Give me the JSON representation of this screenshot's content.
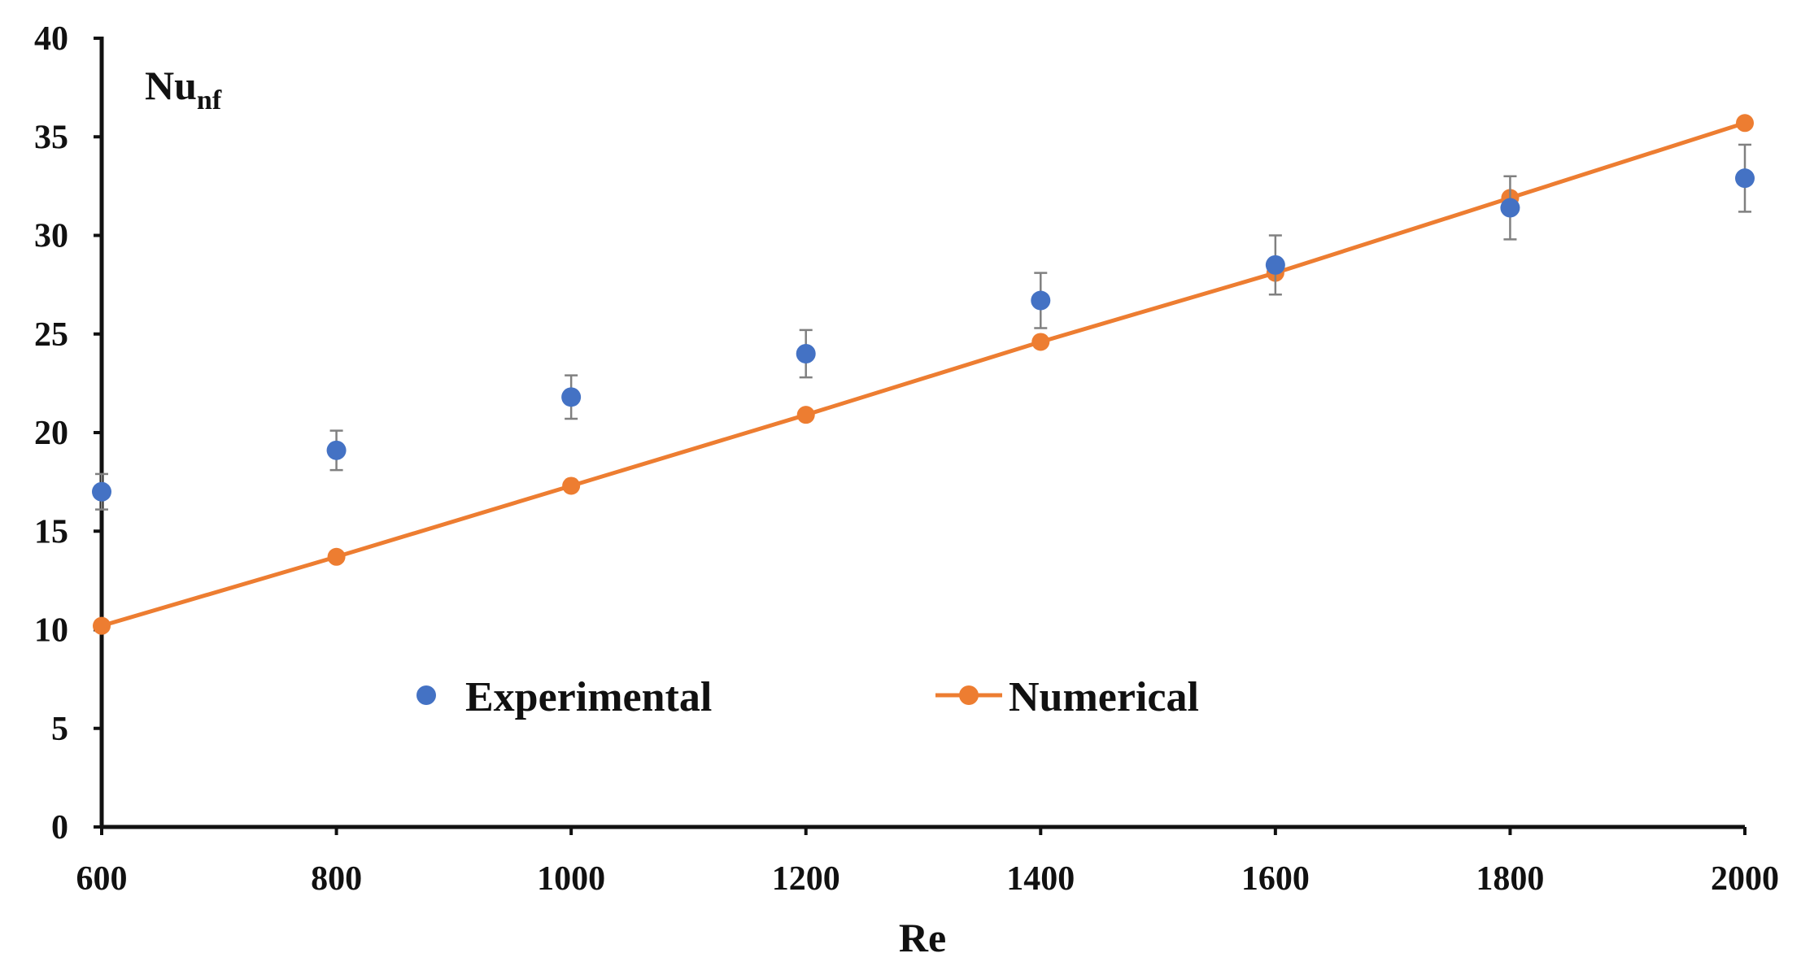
{
  "chart_data": {
    "type": "scatter",
    "title": "",
    "xlabel": "Re",
    "ylabel": {
      "main": "Nu",
      "subscript": "nf"
    },
    "xlim": [
      600,
      2000
    ],
    "ylim": [
      0,
      40
    ],
    "x_ticks": [
      600,
      800,
      1000,
      1200,
      1400,
      1600,
      1800,
      2000
    ],
    "y_ticks": [
      0,
      5,
      10,
      15,
      20,
      25,
      30,
      35,
      40
    ],
    "grid": false,
    "legend_position": "lower-center",
    "series": [
      {
        "name": "Experimental",
        "style": "markers",
        "color": "#4472C4",
        "error_color": "#808080",
        "x": [
          600,
          800,
          1000,
          1200,
          1400,
          1600,
          1800,
          2000
        ],
        "y": [
          17.0,
          19.1,
          21.8,
          24.0,
          26.7,
          28.5,
          31.4,
          32.9
        ],
        "error": [
          0.9,
          1.0,
          1.1,
          1.2,
          1.4,
          1.5,
          1.6,
          1.7
        ]
      },
      {
        "name": "Numerical",
        "style": "line-markers",
        "color": "#ED7D31",
        "x": [
          600,
          800,
          1000,
          1200,
          1400,
          1600,
          1800,
          2000
        ],
        "y": [
          10.2,
          13.7,
          17.3,
          20.9,
          24.6,
          28.1,
          31.9,
          35.7
        ]
      }
    ]
  }
}
